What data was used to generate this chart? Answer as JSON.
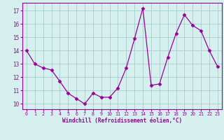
{
  "x": [
    0,
    1,
    2,
    3,
    4,
    5,
    6,
    7,
    8,
    9,
    10,
    11,
    12,
    13,
    14,
    15,
    16,
    17,
    18,
    19,
    20,
    21,
    22,
    23
  ],
  "y": [
    14.0,
    13.0,
    12.7,
    12.55,
    11.7,
    10.8,
    10.4,
    10.0,
    10.8,
    10.5,
    10.5,
    11.2,
    12.7,
    14.9,
    17.2,
    11.4,
    11.5,
    13.5,
    15.3,
    16.7,
    15.9,
    15.5,
    14.0,
    12.8
  ],
  "line_color": "#990099",
  "marker": "D",
  "marker_size": 2.5,
  "bg_color": "#d6f0f0",
  "grid_color": "#aacccc",
  "xlabel": "Windchill (Refroidissement éolien,°C)",
  "xlabel_color": "#990099",
  "tick_color": "#990099",
  "ylabel_ticks": [
    10,
    11,
    12,
    13,
    14,
    15,
    16,
    17
  ],
  "ylim": [
    9.6,
    17.6
  ],
  "xlim": [
    -0.5,
    23.5
  ],
  "xtick_labels": [
    "0",
    "1",
    "2",
    "3",
    "4",
    "5",
    "6",
    "7",
    "8",
    "9",
    "10",
    "11",
    "12",
    "13",
    "14",
    "15",
    "16",
    "17",
    "18",
    "19",
    "20",
    "21",
    "22",
    "23"
  ]
}
